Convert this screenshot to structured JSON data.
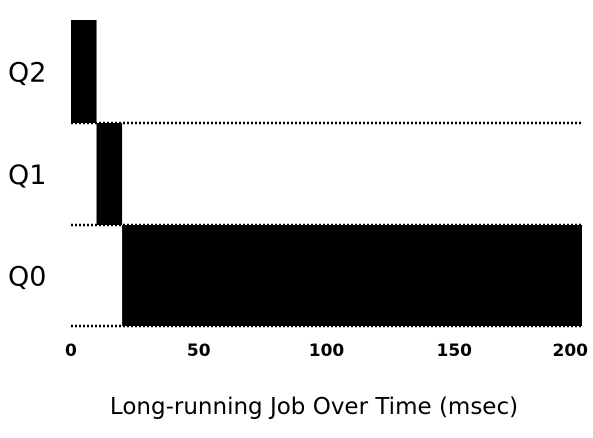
{
  "chart_data": {
    "type": "bar",
    "orientation": "horizontal-timeline",
    "queues": [
      "Q2",
      "Q1",
      "Q0"
    ],
    "xlabel": "Long-running Job Over Time (msec)",
    "xlim": [
      0,
      200
    ],
    "xticks": [
      0,
      50,
      100,
      150,
      200
    ],
    "grid": false,
    "series": [
      {
        "segments": [
          {
            "queue": "Q2",
            "start": 0,
            "end": 10
          },
          {
            "queue": "Q1",
            "start": 10,
            "end": 20
          },
          {
            "queue": "Q0",
            "start": 20,
            "end": 200
          }
        ]
      }
    ],
    "colors": {
      "bar": "#000000",
      "separator": "#000000",
      "text": "#000000"
    }
  }
}
